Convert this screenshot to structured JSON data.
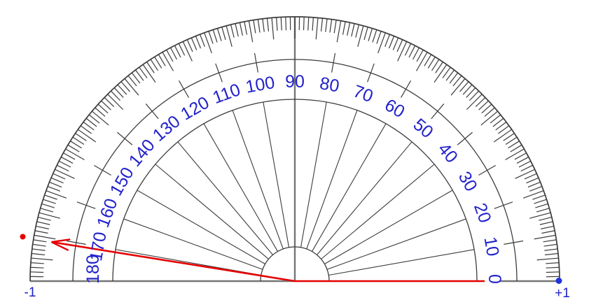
{
  "figure": {
    "type": "protractor-angle-diagram",
    "indicated_angle_deg": 171,
    "left_end_label": "-1",
    "right_end_label": "+1"
  },
  "protractor": {
    "degree_labels": [
      "0",
      "10",
      "20",
      "30",
      "40",
      "50",
      "60",
      "70",
      "80",
      "90",
      "100",
      "110",
      "120",
      "130",
      "140",
      "150",
      "160",
      "170",
      "180"
    ],
    "label_step_deg": 10,
    "major_tick_step_deg": 5,
    "minor_tick_step_deg": 1
  },
  "colors": {
    "degree_label_blue": "#2222cc",
    "marker_red": "#e60000",
    "point_red": "#e60000",
    "point_blue": "#2233dd",
    "protractor_line": "#3c3c3c",
    "baseline_gray": "#757575",
    "background": "#ffffff"
  }
}
